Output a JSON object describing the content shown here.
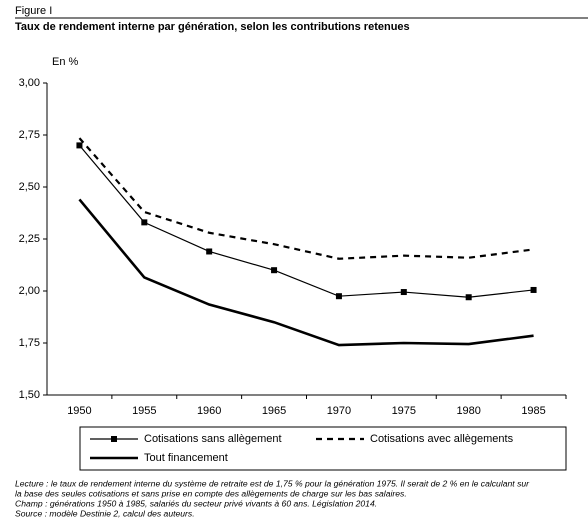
{
  "figure_label": "Figure I",
  "notes": [
    "Lecture : le taux de rendement interne du système de retraite est de 1,75 % pour la génération 1975. Il serait de 2 % en le calculant sur",
    "la base des seules cotisations et sans prise en compte des allègements de charge sur les bas salaires.",
    "Champ : générations 1950 à 1985, salariés du secteur privé vivants à 60 ans. Législation 2014.",
    "Source : modèle Destinie 2, calcul des auteurs."
  ],
  "chart_data": {
    "type": "line",
    "title": "Taux de rendement interne par génération, selon les contributions retenues",
    "y_label": "En %",
    "categories": [
      "1950",
      "1955",
      "1960",
      "1965",
      "1970",
      "1975",
      "1980",
      "1985"
    ],
    "series": [
      {
        "name": "Cotisations sans allègement",
        "color": "#000000",
        "width": 1.2,
        "dashed": false,
        "marker": "square",
        "values": [
          2.7,
          2.33,
          2.19,
          2.1,
          1.975,
          1.995,
          1.97,
          2.005
        ]
      },
      {
        "name": "Cotisations avec allègements",
        "color": "#000000",
        "width": 2.2,
        "dashed": true,
        "marker": "none",
        "values": [
          2.735,
          2.38,
          2.28,
          2.225,
          2.155,
          2.17,
          2.16,
          2.2
        ]
      },
      {
        "name": "Tout financement",
        "color": "#000000",
        "width": 2.6,
        "dashed": false,
        "marker": "none",
        "values": [
          2.44,
          2.065,
          1.935,
          1.85,
          1.74,
          1.75,
          1.745,
          1.785
        ]
      }
    ],
    "ylim": [
      1.5,
      3.0
    ],
    "yticks": [
      {
        "value": 1.5,
        "label": "1,50"
      },
      {
        "value": 1.75,
        "label": "1,75"
      },
      {
        "value": 2.0,
        "label": "2,00"
      },
      {
        "value": 2.25,
        "label": "2,25"
      },
      {
        "value": 2.5,
        "label": "2,50"
      },
      {
        "value": 2.75,
        "label": "2,75"
      },
      {
        "value": 3.0,
        "label": "3,00"
      }
    ],
    "grid": false,
    "legend_position": "bottom"
  }
}
